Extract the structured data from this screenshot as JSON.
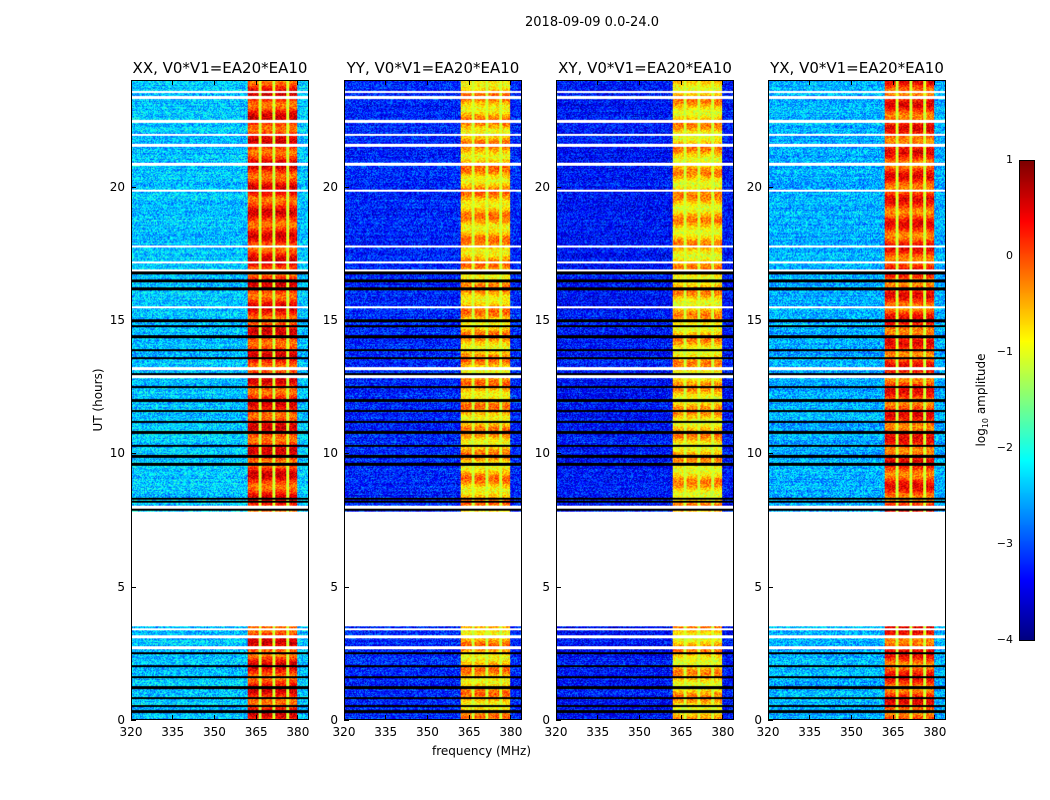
{
  "chart_data": {
    "type": "heatmap",
    "suptitle": "2018-09-09 0.0-24.0",
    "xlabel": "frequency (MHz)",
    "ylabel": "UT (hours)",
    "xlim": [
      320,
      384
    ],
    "ylim": [
      0,
      24
    ],
    "xticks": [
      "320",
      "335",
      "350",
      "365",
      "380"
    ],
    "xtick_values": [
      320,
      335,
      350,
      365,
      380
    ],
    "yticks": [
      "0",
      "5",
      "10",
      "15",
      "20"
    ],
    "ytick_values": [
      0,
      5,
      10,
      15,
      20
    ],
    "no_data_hours": [
      3.5,
      7.8
    ],
    "bright_band_mhz": [
      362,
      380
    ],
    "panels": [
      {
        "title": "XX, V0*V1=EA20*EA10",
        "background_log_amp": -2.4,
        "band_log_amp": 0.2
      },
      {
        "title": "YY, V0*V1=EA20*EA10",
        "background_log_amp": -3.2,
        "band_log_amp": -0.5
      },
      {
        "title": "XY, V0*V1=EA20*EA10",
        "background_log_amp": -3.3,
        "band_log_amp": -0.6
      },
      {
        "title": "YX, V0*V1=EA20*EA10",
        "background_log_amp": -2.5,
        "band_log_amp": 0.1
      }
    ],
    "colorbar": {
      "label": "log10 amplitude",
      "label_main": "log",
      "label_sub": "10",
      "label_rest": " amplitude",
      "range": [
        -4,
        1
      ],
      "ticks": [
        "−4",
        "−3",
        "−2",
        "−1",
        "0",
        "1"
      ],
      "tick_values": [
        -4,
        -3,
        -2,
        -1,
        0,
        1
      ],
      "colormap": "jet"
    }
  }
}
